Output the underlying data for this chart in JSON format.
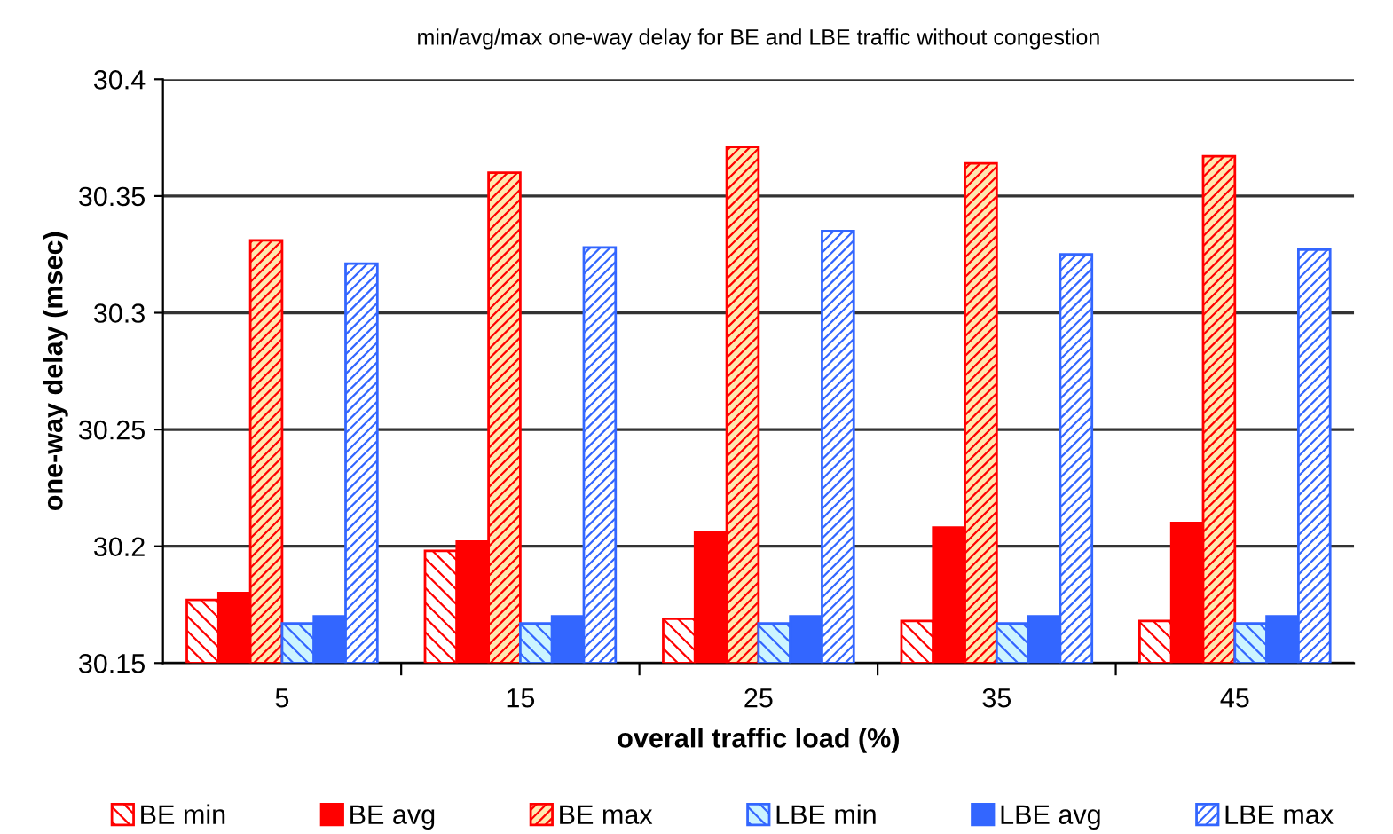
{
  "chart_data": {
    "type": "bar",
    "title": "min/avg/max one-way delay for BE and LBE traffic without congestion",
    "xlabel": "overall traffic load (%)",
    "ylabel": "one-way delay (msec)",
    "categories": [
      "5",
      "15",
      "25",
      "35",
      "45"
    ],
    "series": [
      {
        "name": "BE min",
        "color": "#ff0000",
        "values": [
          30.177,
          30.198,
          30.169,
          30.168,
          30.168
        ]
      },
      {
        "name": "BE avg",
        "color": "#ff0000",
        "values": [
          30.18,
          30.202,
          30.206,
          30.208,
          30.21
        ]
      },
      {
        "name": "BE max",
        "color": "#ff0000",
        "values": [
          30.331,
          30.36,
          30.371,
          30.364,
          30.367
        ]
      },
      {
        "name": "LBE min",
        "color": "#3366ff",
        "values": [
          30.167,
          30.167,
          30.167,
          30.167,
          30.167
        ]
      },
      {
        "name": "LBE avg",
        "color": "#3366ff",
        "values": [
          30.17,
          30.17,
          30.17,
          30.17,
          30.17
        ]
      },
      {
        "name": "LBE max",
        "color": "#3366ff",
        "values": [
          30.321,
          30.328,
          30.335,
          30.325,
          30.327
        ]
      }
    ],
    "ylim": [
      30.15,
      30.4
    ],
    "yticks": [
      30.15,
      30.2,
      30.25,
      30.3,
      30.35,
      30.4
    ],
    "grid": "y",
    "legend": "bottom"
  }
}
